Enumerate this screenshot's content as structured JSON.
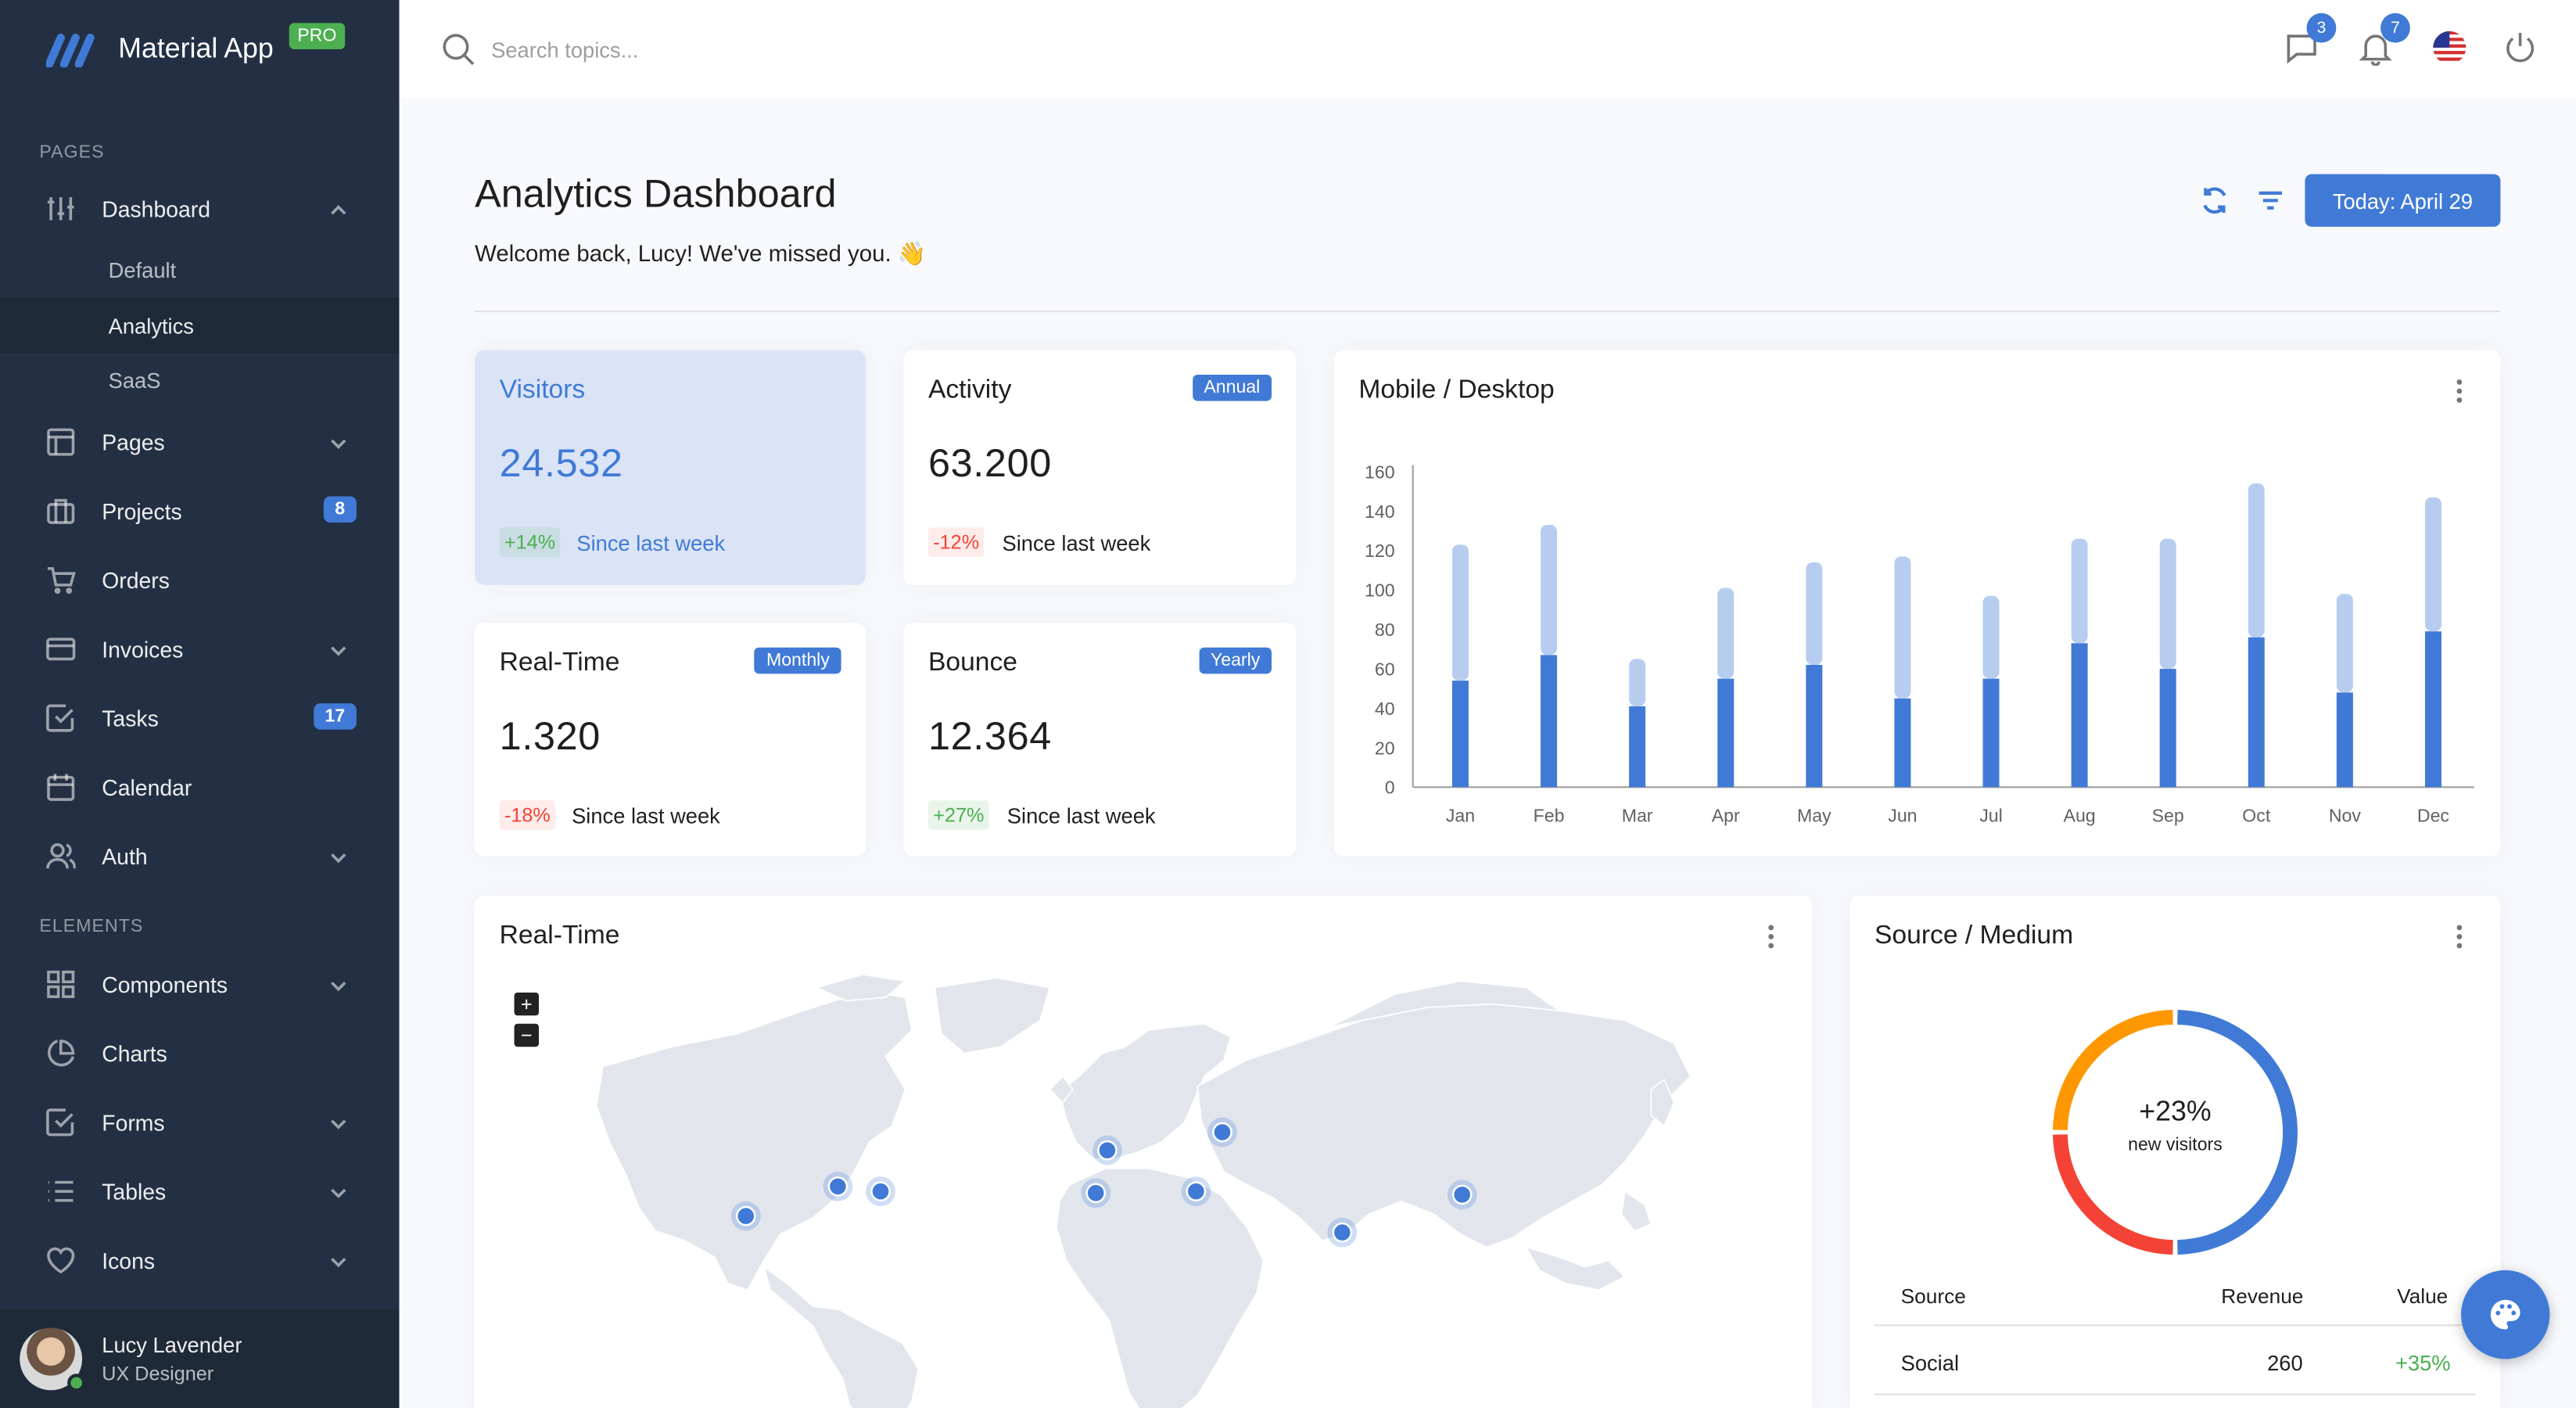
{
  "brand": {
    "title": "Material App",
    "badge": "PRO"
  },
  "sidebar": {
    "section_pages": "PAGES",
    "section_elements": "ELEMENTS",
    "dashboard": "Dashboard",
    "dashboard_sub": [
      "Default",
      "Analytics",
      "SaaS"
    ],
    "items": [
      {
        "label": "Pages",
        "icon": "layout-icon"
      },
      {
        "label": "Projects",
        "icon": "briefcase-icon",
        "badge": "8"
      },
      {
        "label": "Orders",
        "icon": "cart-icon"
      },
      {
        "label": "Invoices",
        "icon": "credit-card-icon"
      },
      {
        "label": "Tasks",
        "icon": "check-square-icon",
        "badge": "17"
      },
      {
        "label": "Calendar",
        "icon": "calendar-icon"
      },
      {
        "label": "Auth",
        "icon": "users-icon"
      }
    ],
    "elements": [
      {
        "label": "Components",
        "icon": "grid-icon"
      },
      {
        "label": "Charts",
        "icon": "pie-chart-icon"
      },
      {
        "label": "Forms",
        "icon": "check-square-icon"
      },
      {
        "label": "Tables",
        "icon": "list-icon"
      },
      {
        "label": "Icons",
        "icon": "heart-icon"
      }
    ],
    "user": {
      "name": "Lucy Lavender",
      "role": "UX Designer"
    }
  },
  "topbar": {
    "search_placeholder": "Search topics...",
    "messages_count": "3",
    "notifications_count": "7"
  },
  "header": {
    "title": "Analytics Dashboard",
    "subtitle": "Welcome back, Lucy! We've missed you. 👋",
    "today_button": "Today: April 29"
  },
  "stats": {
    "visitors": {
      "title": "Visitors",
      "value": "24.532",
      "delta": "+14%",
      "since": "Since last week"
    },
    "activity": {
      "title": "Activity",
      "chip": "Annual",
      "value": "63.200",
      "delta": "-12%",
      "since": "Since last week"
    },
    "realtime": {
      "title": "Real-Time",
      "chip": "Monthly",
      "value": "1.320",
      "delta": "-18%",
      "since": "Since last week"
    },
    "bounce": {
      "title": "Bounce",
      "chip": "Yearly",
      "value": "12.364",
      "delta": "+27%",
      "since": "Since last week"
    }
  },
  "mobile_desktop": {
    "title": "Mobile / Desktop"
  },
  "realtime_map": {
    "title": "Real-Time",
    "zoom_in": "+",
    "zoom_out": "−"
  },
  "source_medium": {
    "title": "Source / Medium",
    "center_value": "+23%",
    "center_label": "new visitors",
    "columns": [
      "Source",
      "Revenue",
      "Value"
    ],
    "rows": [
      {
        "source": "Social",
        "revenue": "260",
        "value": "+35%"
      }
    ]
  },
  "colors": {
    "accent": "#407ad6",
    "sidebar": "#233044",
    "positive": "#4caf50",
    "negative": "#f44336",
    "donut_blue": "#407ad6",
    "donut_red": "#f44336",
    "donut_orange": "#ff9800"
  },
  "chart_data": [
    {
      "type": "bar",
      "stacked": true,
      "categories": [
        "Jan",
        "Feb",
        "Mar",
        "Apr",
        "May",
        "Jun",
        "Jul",
        "Aug",
        "Sep",
        "Oct",
        "Nov",
        "Dec"
      ],
      "series": [
        {
          "values": [
            54,
            67,
            41,
            55,
            62,
            45,
            55,
            73,
            60,
            76,
            48,
            79
          ],
          "color": "#407ad6"
        },
        {
          "values": [
            69,
            66,
            24,
            46,
            52,
            72,
            42,
            53,
            66,
            78,
            50,
            68
          ],
          "color": "#b7cdf0"
        }
      ],
      "ylim": [
        0,
        160
      ],
      "yticks": [
        0,
        20,
        40,
        60,
        80,
        100,
        120,
        140,
        160
      ],
      "grid": false
    },
    {
      "type": "pie",
      "donut": true,
      "slices": [
        {
          "value": 50,
          "color": "#407ad6"
        },
        {
          "value": 25,
          "color": "#f44336"
        },
        {
          "value": 25,
          "color": "#ff9800"
        }
      ]
    }
  ]
}
